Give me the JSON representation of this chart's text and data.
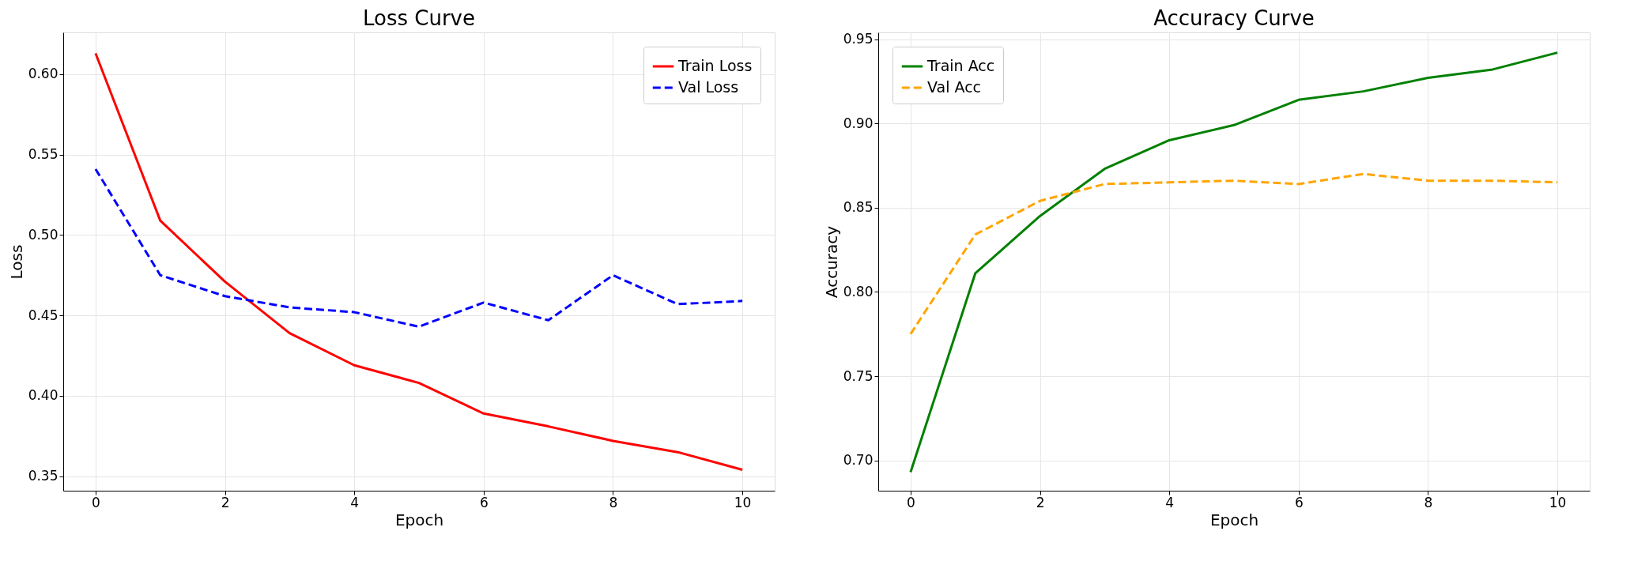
{
  "chart_data": [
    {
      "type": "line",
      "title": "Loss Curve",
      "xlabel": "Epoch",
      "ylabel": "Loss",
      "x": [
        0,
        1,
        2,
        3,
        4,
        5,
        6,
        7,
        8,
        9,
        10
      ],
      "xlim": [
        -0.5,
        10.5
      ],
      "xticks": [
        0,
        2,
        4,
        6,
        8,
        10
      ],
      "ylim": [
        0.341,
        0.626
      ],
      "yticks": [
        0.35,
        {
          "value": 0.4,
          "label": "0.40"
        },
        0.45,
        {
          "value": 0.5,
          "label": "0.50"
        },
        0.55,
        {
          "value": 0.6,
          "label": "0.60"
        }
      ],
      "grid": true,
      "legend": "top right",
      "series": [
        {
          "name": "Train Loss",
          "color": "#ff0000",
          "line_style": "solid",
          "values": [
            0.613,
            0.509,
            0.471,
            0.439,
            0.419,
            0.408,
            0.389,
            0.381,
            0.372,
            0.365,
            0.354
          ]
        },
        {
          "name": "Val Loss",
          "color": "#0000ff",
          "line_style": "dashed",
          "values": [
            0.541,
            0.475,
            0.462,
            0.455,
            0.452,
            0.443,
            0.458,
            0.447,
            0.475,
            0.457,
            0.459
          ]
        }
      ]
    },
    {
      "type": "line",
      "title": "Accuracy Curve",
      "xlabel": "Epoch",
      "ylabel": "Accuracy",
      "x": [
        0,
        1,
        2,
        3,
        4,
        5,
        6,
        7,
        8,
        9,
        10
      ],
      "xlim": [
        -0.5,
        10.5
      ],
      "xticks": [
        0,
        2,
        4,
        6,
        8,
        10
      ],
      "ylim": [
        0.682,
        0.954
      ],
      "yticks": [
        {
          "value": 0.7,
          "label": "0.70"
        },
        0.75,
        {
          "value": 0.8,
          "label": "0.80"
        },
        0.85,
        {
          "value": 0.9,
          "label": "0.90"
        },
        0.95
      ],
      "grid": true,
      "legend": "top left",
      "series": [
        {
          "name": "Train Acc",
          "color": "#008000",
          "line_style": "solid",
          "values": [
            0.693,
            0.811,
            0.845,
            0.873,
            0.89,
            0.899,
            0.914,
            0.919,
            0.927,
            0.932,
            0.942
          ]
        },
        {
          "name": "Val Acc",
          "color": "#ffa500",
          "line_style": "dashed",
          "values": [
            0.775,
            0.834,
            0.854,
            0.864,
            0.865,
            0.866,
            0.864,
            0.87,
            0.866,
            0.866,
            0.865
          ]
        }
      ]
    }
  ]
}
